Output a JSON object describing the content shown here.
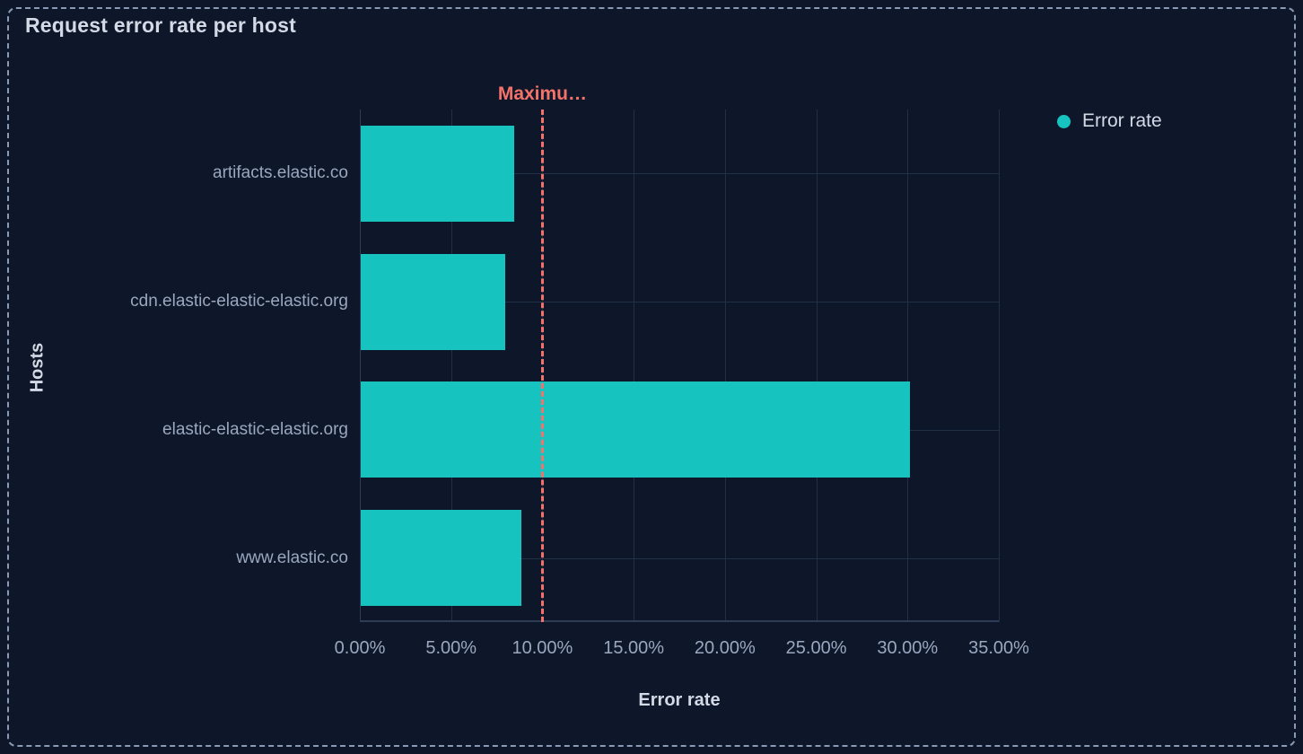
{
  "panel": {
    "title": "Request error rate per host"
  },
  "legend": {
    "position": "right",
    "items": [
      {
        "label": "Error rate",
        "color": "#17c3be",
        "shape": "circle"
      }
    ]
  },
  "chart_data": {
    "type": "bar",
    "orientation": "horizontal",
    "title": "Request error rate per host",
    "xlabel": "Error rate",
    "ylabel": "Hosts",
    "categories": [
      "artifacts.elastic.co",
      "cdn.elastic-elastic-elastic.org",
      "elastic-elastic-elastic.org",
      "www.elastic.co"
    ],
    "series": [
      {
        "name": "Error rate",
        "values": [
          8.4,
          7.9,
          30.1,
          8.8
        ]
      }
    ],
    "unit": "%",
    "xlim": [
      0,
      35
    ],
    "x_ticks": [
      {
        "value": 0,
        "label": "0.00%"
      },
      {
        "value": 5,
        "label": "5.00%"
      },
      {
        "value": 10,
        "label": "10.00%"
      },
      {
        "value": 15,
        "label": "15.00%"
      },
      {
        "value": 20,
        "label": "20.00%"
      },
      {
        "value": 25,
        "label": "25.00%"
      },
      {
        "value": 30,
        "label": "30.00%"
      },
      {
        "value": 35,
        "label": "35.00%"
      }
    ],
    "threshold": {
      "value": 10,
      "label": "Maximu…",
      "color": "#f4726a"
    },
    "grid": true,
    "bar_color": "#17c3be",
    "legend_position": "right"
  },
  "colors": {
    "background": "#0e1729",
    "panel_border": "#8a9ab5",
    "text_primary": "#d3dae6",
    "text_muted": "#9aa7bf",
    "gridline": "#213047",
    "axis_line": "#2e3d55",
    "bar": "#17c3be",
    "threshold": "#f4726a"
  }
}
